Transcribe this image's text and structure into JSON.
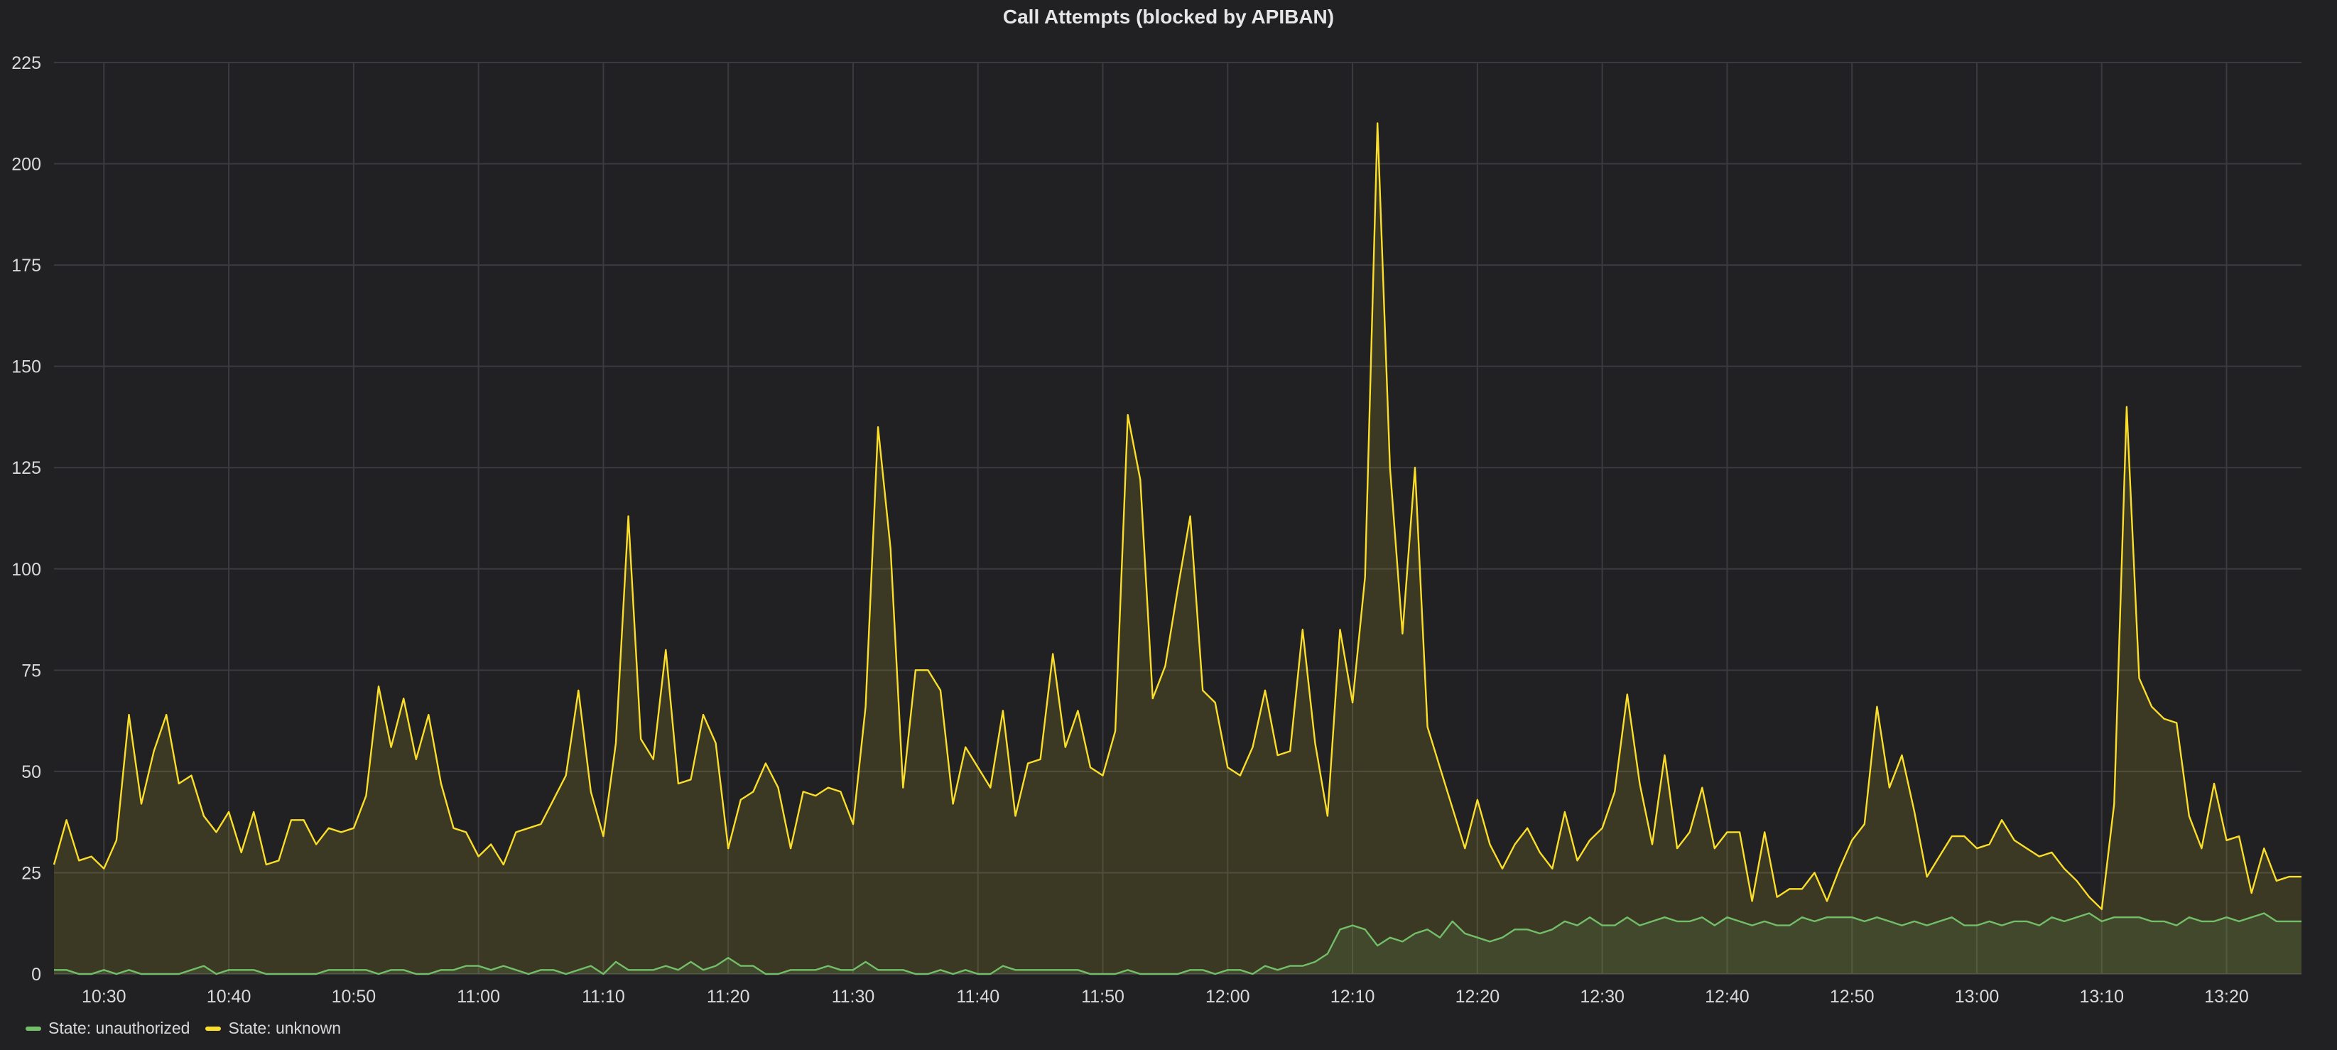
{
  "chart_data": {
    "type": "area",
    "title": "Call Attempts (blocked by APIBAN)",
    "xlabel": "",
    "ylabel": "",
    "ylim": [
      0,
      225
    ],
    "yticks": [
      0,
      25,
      50,
      75,
      100,
      125,
      150,
      175,
      200,
      225
    ],
    "x_range": [
      "10:26",
      "13:26"
    ],
    "xticks": [
      "10:30",
      "10:40",
      "10:50",
      "11:00",
      "11:10",
      "11:20",
      "11:30",
      "11:40",
      "11:50",
      "12:00",
      "12:10",
      "12:20",
      "12:30",
      "12:40",
      "12:50",
      "13:00",
      "13:10",
      "13:20"
    ],
    "grid": true,
    "legend_placement": "bottom-left",
    "x": [
      "10:26",
      "10:27",
      "10:28",
      "10:29",
      "10:30",
      "10:31",
      "10:32",
      "10:33",
      "10:34",
      "10:35",
      "10:36",
      "10:37",
      "10:38",
      "10:39",
      "10:40",
      "10:41",
      "10:42",
      "10:43",
      "10:44",
      "10:45",
      "10:46",
      "10:47",
      "10:48",
      "10:49",
      "10:50",
      "10:51",
      "10:52",
      "10:53",
      "10:54",
      "10:55",
      "10:56",
      "10:57",
      "10:58",
      "10:59",
      "11:00",
      "11:01",
      "11:02",
      "11:03",
      "11:04",
      "11:05",
      "11:06",
      "11:07",
      "11:08",
      "11:09",
      "11:10",
      "11:11",
      "11:12",
      "11:13",
      "11:14",
      "11:15",
      "11:16",
      "11:17",
      "11:18",
      "11:19",
      "11:20",
      "11:21",
      "11:22",
      "11:23",
      "11:24",
      "11:25",
      "11:26",
      "11:27",
      "11:28",
      "11:29",
      "11:30",
      "11:31",
      "11:32",
      "11:33",
      "11:34",
      "11:35",
      "11:36",
      "11:37",
      "11:38",
      "11:39",
      "11:40",
      "11:41",
      "11:42",
      "11:43",
      "11:44",
      "11:45",
      "11:46",
      "11:47",
      "11:48",
      "11:49",
      "11:50",
      "11:51",
      "11:52",
      "11:53",
      "11:54",
      "11:55",
      "11:56",
      "11:57",
      "11:58",
      "11:59",
      "12:00",
      "12:01",
      "12:02",
      "12:03",
      "12:04",
      "12:05",
      "12:06",
      "12:07",
      "12:08",
      "12:09",
      "12:10",
      "12:11",
      "12:12",
      "12:13",
      "12:14",
      "12:15",
      "12:16",
      "12:17",
      "12:18",
      "12:19",
      "12:20",
      "12:21",
      "12:22",
      "12:23",
      "12:24",
      "12:25",
      "12:26",
      "12:27",
      "12:28",
      "12:29",
      "12:30",
      "12:31",
      "12:32",
      "12:33",
      "12:34",
      "12:35",
      "12:36",
      "12:37",
      "12:38",
      "12:39",
      "12:40",
      "12:41",
      "12:42",
      "12:43",
      "12:44",
      "12:45",
      "12:46",
      "12:47",
      "12:48",
      "12:49",
      "12:50",
      "12:51",
      "12:52",
      "12:53",
      "12:54",
      "12:55",
      "12:56",
      "12:57",
      "12:58",
      "12:59",
      "13:00",
      "13:01",
      "13:02",
      "13:03",
      "13:04",
      "13:05",
      "13:06",
      "13:07",
      "13:08",
      "13:09",
      "13:10",
      "13:11",
      "13:12",
      "13:13",
      "13:14",
      "13:15",
      "13:16",
      "13:17",
      "13:18",
      "13:19",
      "13:20",
      "13:21",
      "13:22",
      "13:23",
      "13:24",
      "13:25",
      "13:26"
    ],
    "series": [
      {
        "name": "State: unauthorized",
        "color": "#73bf69",
        "values": [
          1,
          1,
          0,
          0,
          1,
          0,
          1,
          0,
          0,
          0,
          0,
          1,
          2,
          0,
          1,
          1,
          1,
          0,
          0,
          0,
          0,
          0,
          1,
          1,
          1,
          1,
          0,
          1,
          1,
          0,
          0,
          1,
          1,
          2,
          2,
          1,
          2,
          1,
          0,
          1,
          1,
          0,
          1,
          2,
          0,
          3,
          1,
          1,
          1,
          2,
          1,
          3,
          1,
          2,
          4,
          2,
          2,
          0,
          0,
          1,
          1,
          1,
          2,
          1,
          1,
          3,
          1,
          1,
          1,
          0,
          0,
          1,
          0,
          1,
          0,
          0,
          2,
          1,
          1,
          1,
          1,
          1,
          1,
          0,
          0,
          0,
          1,
          0,
          0,
          0,
          0,
          1,
          1,
          0,
          1,
          1,
          0,
          2,
          1,
          2,
          2,
          3,
          5,
          11,
          12,
          11,
          7,
          9,
          8,
          10,
          11,
          9,
          13,
          10,
          9,
          8,
          9,
          11,
          11,
          10,
          11,
          13,
          12,
          14,
          12,
          12,
          14,
          12,
          13,
          14,
          13,
          13,
          14,
          12,
          14,
          13,
          12,
          13,
          12,
          12,
          14,
          13,
          14,
          14,
          14,
          13,
          14,
          13,
          12,
          13,
          12,
          13,
          14,
          12,
          12,
          13,
          12,
          13,
          13,
          12,
          14,
          13,
          14,
          15,
          13,
          14,
          14,
          14,
          13,
          13,
          12,
          14,
          13,
          13,
          14,
          13,
          14,
          15,
          13,
          13,
          13
        ]
      },
      {
        "name": "State: unknown",
        "color": "#fade2a",
        "values": [
          27,
          38,
          28,
          29,
          26,
          33,
          64,
          42,
          55,
          64,
          47,
          49,
          39,
          35,
          40,
          30,
          40,
          27,
          28,
          38,
          38,
          32,
          36,
          35,
          36,
          44,
          71,
          56,
          68,
          53,
          64,
          47,
          36,
          35,
          29,
          32,
          27,
          35,
          36,
          37,
          43,
          49,
          70,
          45,
          34,
          57,
          113,
          58,
          53,
          80,
          47,
          48,
          64,
          57,
          31,
          43,
          45,
          52,
          46,
          31,
          45,
          44,
          46,
          45,
          37,
          66,
          135,
          105,
          46,
          75,
          75,
          70,
          42,
          56,
          51,
          46,
          65,
          39,
          52,
          53,
          79,
          56,
          65,
          51,
          49,
          60,
          138,
          122,
          68,
          76,
          95,
          113,
          70,
          67,
          51,
          49,
          56,
          70,
          54,
          55,
          85,
          57,
          39,
          85,
          67,
          98,
          210,
          125,
          84,
          125,
          61,
          51,
          41,
          31,
          43,
          32,
          26,
          32,
          36,
          30,
          26,
          40,
          28,
          33,
          36,
          45,
          69,
          47,
          32,
          54,
          31,
          35,
          46,
          31,
          35,
          35,
          18,
          35,
          19,
          21,
          21,
          25,
          18,
          26,
          33,
          37,
          66,
          46,
          54,
          40,
          24,
          29,
          34,
          34,
          31,
          32,
          38,
          33,
          31,
          29,
          30,
          26,
          23,
          19,
          16,
          42,
          140,
          73,
          66,
          63,
          62,
          39,
          31,
          47,
          33,
          34,
          20,
          31,
          23,
          24,
          24
        ]
      }
    ]
  }
}
